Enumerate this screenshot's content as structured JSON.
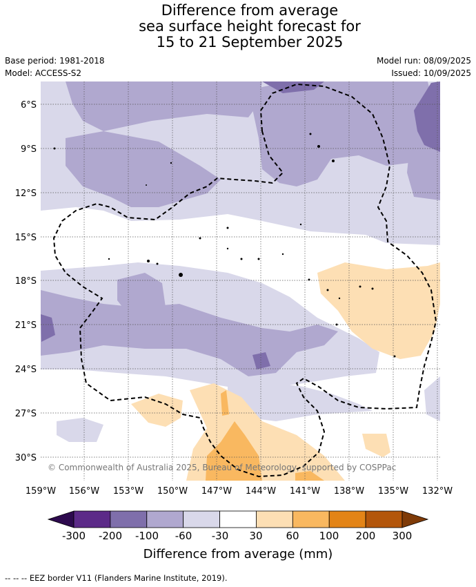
{
  "title_lines": [
    "Difference from average",
    "sea surface height forecast for",
    "15 to 21 September 2025"
  ],
  "meta": {
    "base_period": "Base period: 1981-2018",
    "model": "Model: ACCESS-S2",
    "model_run": "Model run: 08/09/2025",
    "issued": "Issued: 10/09/2025"
  },
  "map": {
    "lat_labels": [
      "6°S",
      "9°S",
      "12°S",
      "15°S",
      "18°S",
      "21°S",
      "24°S",
      "27°S",
      "30°S"
    ],
    "lon_labels": [
      "159°W",
      "156°W",
      "153°W",
      "150°W",
      "147°W",
      "144°W",
      "141°W",
      "138°W",
      "135°W",
      "132°W"
    ],
    "copyright": "© Commonwealth of Australia 2025, Bureau of Meteorology, supported by COSPPac",
    "gridlines": true,
    "eez_border": "dashed"
  },
  "colorbar": {
    "ticks": [
      "-300",
      "-200",
      "-100",
      "-60",
      "-30",
      "30",
      "60",
      "100",
      "200",
      "300"
    ],
    "colors": [
      "#2d0a4e",
      "#5c2a88",
      "#7f6fab",
      "#b0a8cf",
      "#d9d8ea",
      "#ffffff",
      "#fddfb4",
      "#f9b860",
      "#e38417",
      "#b3560b",
      "#7f3b08"
    ],
    "label": "Difference from average (mm)"
  },
  "footer": "--  --  -- EEZ border V11 (Flanders Marine Institute, 2019)."
}
